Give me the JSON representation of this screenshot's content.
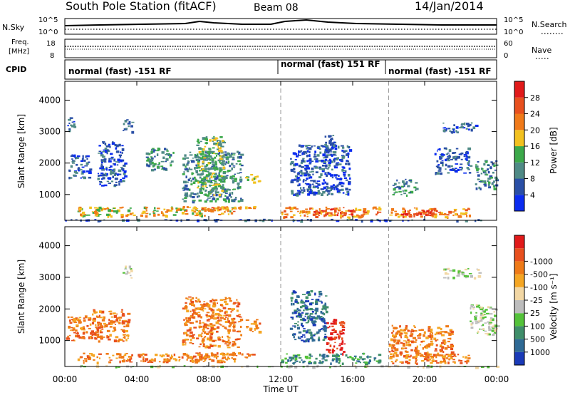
{
  "header": {
    "station": "South Pole Station (fitACF)",
    "beam": "Beam 08",
    "date": "14/Jan/2014"
  },
  "sky_panel": {
    "left_label": "N.Sky",
    "right_label": "N.Search",
    "left_ticks": [
      "10^5",
      "10^0"
    ],
    "right_ticks": [
      "10^5",
      "10^0"
    ]
  },
  "freq_panel": {
    "left_label_line1": "Freq.",
    "left_label_line2": "[MHz]",
    "right_label": "Nave",
    "left_ticks": [
      "18",
      "8"
    ],
    "right_ticks": [
      "60",
      "0"
    ]
  },
  "cpid_panel": {
    "label": "CPID",
    "segments": [
      {
        "label": "normal (fast) -151 RF",
        "start_hour": 0
      },
      {
        "label": "normal (fast) 151 RF",
        "start_hour": 12
      },
      {
        "label": "normal (fast) -151 RF",
        "start_hour": 18
      }
    ]
  },
  "x_axis": {
    "label": "Time UT",
    "range_hours": [
      0,
      24
    ],
    "tick_hours": [
      0,
      4,
      8,
      12,
      16,
      20,
      24
    ],
    "tick_labels": [
      "00:00",
      "04:00",
      "08:00",
      "12:00",
      "16:00",
      "20:00",
      "00:00"
    ],
    "dashed_marks_hours": [
      12,
      18
    ]
  },
  "chart_data": [
    {
      "type": "heatmap",
      "ylabel": "Slant Range [km]",
      "ylim": [
        180,
        4600
      ],
      "yticks": [
        1000,
        2000,
        3000,
        4000
      ],
      "colorbar": {
        "label": "Power [dB]",
        "tick_labels": [
          "4",
          "8",
          "12",
          "16",
          "20",
          "24",
          "28"
        ],
        "colors": [
          "#0b2cf0",
          "#2a4fa6",
          "#4f8a86",
          "#3ca94a",
          "#f2c11f",
          "#f07a1a",
          "#e8501e",
          "#e11a1a"
        ]
      },
      "blobs": [
        {
          "x": [
            0.0,
            24.0
          ],
          "y": [
            180,
            230
          ],
          "level": 1
        },
        {
          "x": [
            0.7,
            9.5
          ],
          "y": [
            330,
            620
          ],
          "level": 4
        },
        {
          "x": [
            6.5,
            10.5
          ],
          "y": [
            480,
            640
          ],
          "level": 5
        },
        {
          "x": [
            12.0,
            17.5
          ],
          "y": [
            300,
            620
          ],
          "level": 5
        },
        {
          "x": [
            13.5,
            16.0
          ],
          "y": [
            380,
            560
          ],
          "level": 6
        },
        {
          "x": [
            18.0,
            22.5
          ],
          "y": [
            300,
            600
          ],
          "level": 5
        },
        {
          "x": [
            18.5,
            21.0
          ],
          "y": [
            360,
            540
          ],
          "level": 7
        },
        {
          "x": [
            6.5,
            9.8
          ],
          "y": [
            800,
            2400
          ],
          "level": 2
        },
        {
          "x": [
            7.3,
            8.8
          ],
          "y": [
            1000,
            2900
          ],
          "level": 3
        },
        {
          "x": [
            1.8,
            3.3
          ],
          "y": [
            1300,
            2700
          ],
          "level": 1
        },
        {
          "x": [
            0.2,
            1.4
          ],
          "y": [
            1500,
            2300
          ],
          "level": 1
        },
        {
          "x": [
            4.5,
            6.0
          ],
          "y": [
            1800,
            2500
          ],
          "level": 2
        },
        {
          "x": [
            10.0,
            10.8
          ],
          "y": [
            1400,
            1700
          ],
          "level": 3
        },
        {
          "x": [
            12.5,
            15.8
          ],
          "y": [
            1000,
            2600
          ],
          "level": 1
        },
        {
          "x": [
            14.3,
            15.0
          ],
          "y": [
            2000,
            2900
          ],
          "level": 1
        },
        {
          "x": [
            20.5,
            22.5
          ],
          "y": [
            1700,
            2500
          ],
          "level": 1
        },
        {
          "x": [
            22.8,
            24.0
          ],
          "y": [
            1200,
            2100
          ],
          "level": 2
        },
        {
          "x": [
            18.2,
            19.5
          ],
          "y": [
            1000,
            1500
          ],
          "level": 2
        },
        {
          "x": [
            3.2,
            3.7
          ],
          "y": [
            3000,
            3400
          ],
          "level": 1
        },
        {
          "x": [
            0.1,
            0.5
          ],
          "y": [
            3000,
            3500
          ],
          "level": 1
        },
        {
          "x": [
            21.0,
            23.0
          ],
          "y": [
            3000,
            3300
          ],
          "level": 1
        }
      ]
    },
    {
      "type": "heatmap",
      "ylabel": "Slant Range [km]",
      "ylim": [
        180,
        4600
      ],
      "yticks": [
        1000,
        2000,
        3000,
        4000
      ],
      "colorbar": {
        "label": "Velocity [m s⁻¹]",
        "tick_labels": [
          "1000",
          "500",
          "100",
          "25",
          "-25",
          "-100",
          "-500",
          "-1000"
        ],
        "colors": [
          "#1a3ab8",
          "#2f6a95",
          "#3f8e6a",
          "#54c23a",
          "#bdbdbd",
          "#f2d7a4",
          "#f5a623",
          "#ef7a17",
          "#e8501e",
          "#e11a1a"
        ]
      },
      "blobs": [
        {
          "x": [
            0.0,
            24.0
          ],
          "y": [
            180,
            230
          ],
          "level": 4
        },
        {
          "x": [
            0.7,
            9.5
          ],
          "y": [
            330,
            620
          ],
          "level": 7
        },
        {
          "x": [
            6.5,
            10.5
          ],
          "y": [
            480,
            640
          ],
          "level": 7
        },
        {
          "x": [
            12.0,
            17.5
          ],
          "y": [
            300,
            620
          ],
          "level": 2
        },
        {
          "x": [
            18.0,
            22.5
          ],
          "y": [
            300,
            600
          ],
          "level": 7
        },
        {
          "x": [
            6.5,
            9.8
          ],
          "y": [
            800,
            2400
          ],
          "level": 7
        },
        {
          "x": [
            1.5,
            3.5
          ],
          "y": [
            1000,
            2000
          ],
          "level": 7
        },
        {
          "x": [
            0.0,
            1.5
          ],
          "y": [
            1000,
            1800
          ],
          "level": 7
        },
        {
          "x": [
            14.5,
            15.5
          ],
          "y": [
            600,
            1700
          ],
          "level": 9
        },
        {
          "x": [
            12.5,
            14.5
          ],
          "y": [
            1000,
            2600
          ],
          "level": 1
        },
        {
          "x": [
            22.5,
            24.0
          ],
          "y": [
            1200,
            2200
          ],
          "level": 4
        },
        {
          "x": [
            18.0,
            21.5
          ],
          "y": [
            500,
            1500
          ],
          "level": 7
        },
        {
          "x": [
            3.2,
            3.7
          ],
          "y": [
            3000,
            3400
          ],
          "level": 4
        },
        {
          "x": [
            21.0,
            23.0
          ],
          "y": [
            3000,
            3300
          ],
          "level": 4
        },
        {
          "x": [
            10.0,
            10.8
          ],
          "y": [
            1300,
            1700
          ],
          "level": 7
        }
      ]
    }
  ]
}
